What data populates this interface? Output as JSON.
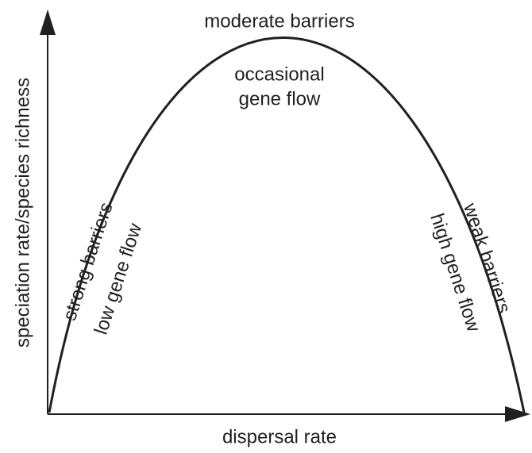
{
  "x_axis_label": "dispersal rate",
  "y_axis_label": "speciation rate/species richness",
  "annotations": {
    "top": "moderate barriers",
    "top_inner": [
      "occasional",
      "gene flow"
    ],
    "left_outer": "strong barriers",
    "left_inner": "low gene flow",
    "right_outer": "weak barriers",
    "right_inner": "high gene flow"
  }
}
